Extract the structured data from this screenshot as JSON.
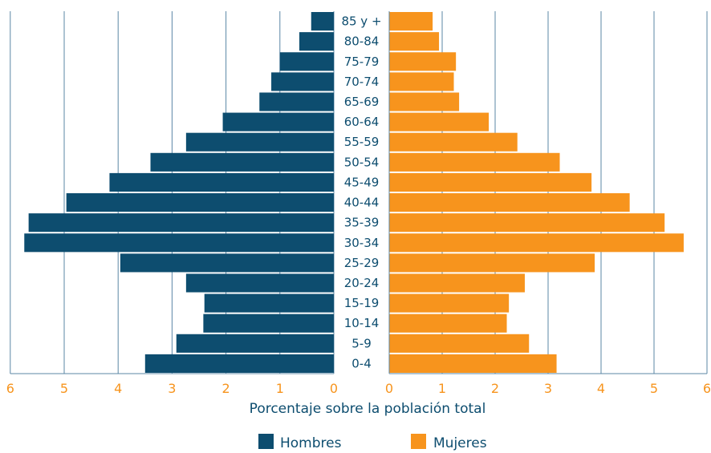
{
  "chart_data": {
    "type": "bar",
    "orientation": "horizontal",
    "categories": [
      "85 y +",
      "80-84",
      "75-79",
      "70-74",
      "65-69",
      "60-64",
      "55-59",
      "50-54",
      "45-49",
      "40-44",
      "35-39",
      "30-34",
      "25-29",
      "20-24",
      "15-19",
      "10-14",
      "5-9",
      "0-4"
    ],
    "series": [
      {
        "name": "Hombres",
        "color": "#0d4d6f",
        "side": "left",
        "values": [
          0.42,
          0.64,
          1.0,
          1.16,
          1.38,
          2.06,
          2.74,
          3.4,
          4.16,
          4.96,
          5.66,
          5.74,
          3.96,
          2.74,
          2.4,
          2.42,
          2.92,
          3.5
        ]
      },
      {
        "name": "Mujeres",
        "color": "#f7941d",
        "side": "right",
        "values": [
          0.82,
          0.94,
          1.26,
          1.22,
          1.32,
          1.88,
          2.42,
          3.22,
          3.82,
          4.54,
          5.2,
          5.56,
          3.88,
          2.56,
          2.26,
          2.22,
          2.64,
          3.16
        ]
      }
    ],
    "xlabel": "Porcentaje sobre la población total",
    "left_ticks": [
      "6",
      "5",
      "4",
      "3",
      "2",
      "1",
      "0"
    ],
    "right_ticks": [
      "0",
      "1",
      "2",
      "3",
      "4",
      "5",
      "6"
    ],
    "xlim": [
      0,
      6
    ],
    "grid": true,
    "legend_position": "bottom"
  },
  "colors": {
    "hombres": "#0d4d6f",
    "mujeres": "#f7941d",
    "grid": "#5b87a6",
    "axis_label": "#0d4d6f",
    "tick_label": "#f7941d"
  }
}
